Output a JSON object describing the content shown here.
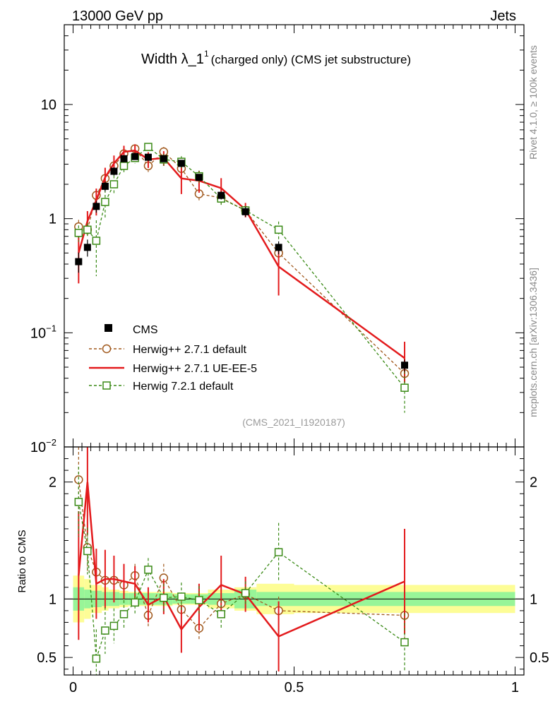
{
  "header": {
    "energy_label": "13000 GeV pp",
    "process_label": "Jets"
  },
  "side_labels": {
    "rivet": "Rivet 4.1.0, ≥ 100k events",
    "mcplots": "mcplots.cern.ch [arXiv:1306.3436]"
  },
  "chart_data": {
    "type": "line",
    "title_main": "Width λ_1",
    "title_sup": "1",
    "title_sub": "(charged only) (CMS jet substructure)",
    "analysis_id": "(CMS_2021_I1920187)",
    "xlabel": "",
    "ylabel": "",
    "ratio_ylabel": "Ratio to CMS",
    "xlim": [
      -0.02,
      1.02
    ],
    "ylim": [
      0.01,
      50
    ],
    "yscale": "log",
    "ratio_ylim": [
      0.35,
      2.3
    ],
    "x_ticks": [
      {
        "v": 0,
        "label": "0"
      },
      {
        "v": 0.5,
        "label": "0.5"
      },
      {
        "v": 1,
        "label": "1"
      }
    ],
    "y_ticks": [
      {
        "v": 0.01,
        "base": "10",
        "exp": "−2"
      },
      {
        "v": 0.1,
        "base": "10",
        "exp": "−1"
      },
      {
        "v": 1,
        "base": "1",
        "exp": ""
      },
      {
        "v": 10,
        "base": "10",
        "exp": ""
      }
    ],
    "ratio_ticks": [
      {
        "v": 0.5,
        "label": "0.5"
      },
      {
        "v": 1,
        "label": "1"
      },
      {
        "v": 2,
        "label": "2"
      }
    ],
    "x": [
      0.0125,
      0.0325,
      0.0525,
      0.0725,
      0.0925,
      0.115,
      0.14,
      0.17,
      0.205,
      0.245,
      0.285,
      0.335,
      0.39,
      0.465,
      0.75
    ],
    "bins": [
      [
        0,
        0.025
      ],
      [
        0.025,
        0.04
      ],
      [
        0.04,
        0.065
      ],
      [
        0.065,
        0.08
      ],
      [
        0.08,
        0.105
      ],
      [
        0.105,
        0.125
      ],
      [
        0.125,
        0.155
      ],
      [
        0.155,
        0.185
      ],
      [
        0.185,
        0.225
      ],
      [
        0.225,
        0.265
      ],
      [
        0.265,
        0.305
      ],
      [
        0.305,
        0.365
      ],
      [
        0.365,
        0.415
      ],
      [
        0.415,
        0.5
      ],
      [
        0.5,
        1.0
      ]
    ],
    "reference": {
      "name": "CMS",
      "values": [
        0.42,
        0.56,
        1.28,
        1.92,
        2.6,
        3.35,
        3.5,
        3.45,
        3.35,
        3.05,
        2.3,
        1.6,
        1.15,
        0.56,
        0.052
      ],
      "stat_band": [
        0.1,
        0.08,
        0.07,
        0.06,
        0.06,
        0.05,
        0.05,
        0.05,
        0.05,
        0.04,
        0.04,
        0.05,
        0.08,
        0.06,
        0.06
      ],
      "total_band": [
        0.2,
        0.17,
        0.12,
        0.1,
        0.08,
        0.07,
        0.06,
        0.06,
        0.06,
        0.05,
        0.05,
        0.08,
        0.1,
        0.13,
        0.12
      ]
    },
    "series": [
      {
        "name": "Herwig++ 2.7.1 default",
        "color": "#a0581c",
        "dash": "4,3",
        "marker": "circle",
        "values": [
          0.85,
          0.8,
          1.6,
          2.25,
          2.9,
          3.7,
          4.1,
          2.9,
          3.85,
          2.75,
          1.65,
          1.52,
          1.18,
          0.5,
          0.044
        ],
        "ratio": [
          2.02,
          1.44,
          1.23,
          1.16,
          1.16,
          1.12,
          1.2,
          0.86,
          1.18,
          0.91,
          0.75,
          0.96,
          1.04,
          0.9,
          0.86
        ],
        "ratio_err": [
          0.3,
          0.2,
          0.15,
          0.12,
          0.1,
          0.1,
          0.1,
          0.1,
          0.12,
          0.12,
          0.1,
          0.12,
          0.08,
          0.12,
          0.2
        ]
      },
      {
        "name": "Herwig++ 2.7.1 UE-EE-5",
        "color": "#e31a1c",
        "dash": "",
        "marker": "none",
        "values": [
          0.5,
          0.95,
          1.45,
          2.3,
          3.05,
          3.85,
          3.95,
          3.3,
          3.4,
          2.25,
          2.15,
          1.85,
          1.2,
          0.38,
          0.06
        ],
        "ratio": [
          1.2,
          2.0,
          1.13,
          1.17,
          1.17,
          1.15,
          1.13,
          0.95,
          1.02,
          0.74,
          0.93,
          1.12,
          1.04,
          0.68,
          1.15
        ],
        "ratio_err": [
          0.55,
          0.45,
          0.3,
          0.25,
          0.2,
          0.15,
          0.15,
          0.15,
          0.15,
          0.2,
          0.2,
          0.25,
          0.15,
          0.3,
          0.45
        ]
      },
      {
        "name": "Herwig 7.2.1 default",
        "color": "#3a8a16",
        "dash": "4,3",
        "marker": "square",
        "values": [
          0.75,
          0.8,
          0.64,
          1.4,
          2.0,
          2.9,
          3.4,
          4.25,
          3.3,
          3.15,
          2.35,
          1.5,
          1.18,
          0.8,
          0.033
        ],
        "ratio": [
          1.83,
          1.41,
          0.49,
          0.73,
          0.77,
          0.87,
          0.97,
          1.25,
          1.01,
          1.02,
          0.99,
          0.87,
          1.05,
          1.4,
          0.63
        ],
        "ratio_err": [
          0.3,
          0.2,
          0.25,
          0.2,
          0.15,
          0.12,
          0.1,
          0.1,
          0.12,
          0.12,
          0.12,
          0.12,
          0.1,
          0.25,
          0.25
        ]
      }
    ]
  }
}
